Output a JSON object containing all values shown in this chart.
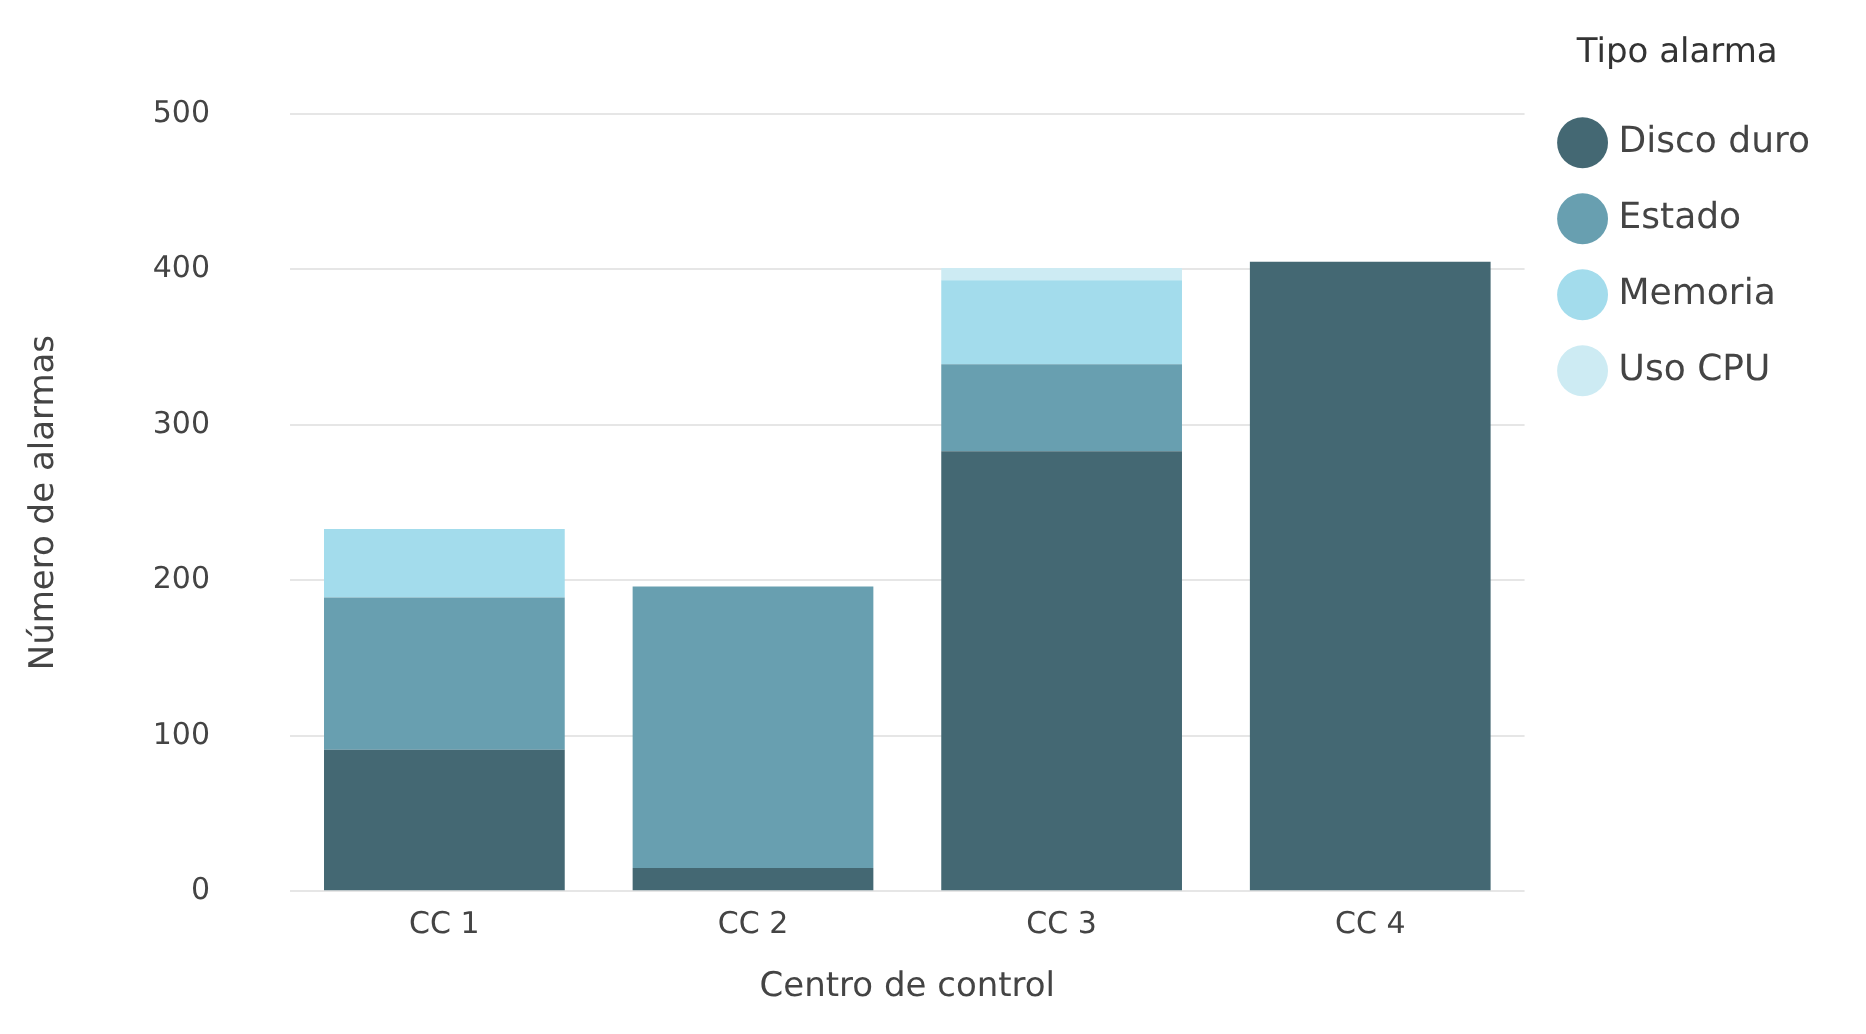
{
  "chart_data": {
    "type": "bar",
    "stacked": true,
    "xlabel": "Centro de control",
    "ylabel": "Número de alarmas",
    "legend_title": "Tipo alarma",
    "legend": "top right",
    "grid": "y",
    "categories": [
      "CC 1",
      "CC 2",
      "CC 3",
      "CC 4"
    ],
    "ylim": [
      0,
      500
    ],
    "yticks": [
      0,
      100,
      200,
      300,
      400,
      500
    ],
    "series": [
      {
        "name": "Disco duro",
        "color": "#446873",
        "values": [
          91,
          15,
          283,
          405
        ]
      },
      {
        "name": "Estado",
        "color": "#689fb0",
        "values": [
          98,
          181,
          56,
          0
        ]
      },
      {
        "name": "Memoria",
        "color": "#a3dcec",
        "values": [
          44,
          0,
          54,
          0
        ]
      },
      {
        "name": "Uso CPU",
        "color": "#cdebf3",
        "values": [
          0,
          0,
          8,
          0
        ]
      }
    ]
  }
}
